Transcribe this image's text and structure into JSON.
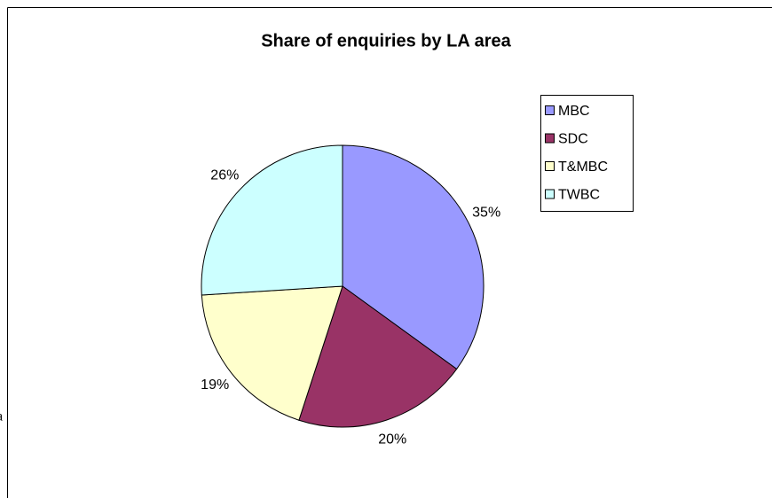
{
  "chart_data": {
    "type": "pie",
    "title": "Share of enquiries by LA area",
    "categories": [
      "MBC",
      "SDC",
      "T&MBC",
      "TWBC"
    ],
    "values": [
      35,
      20,
      19,
      26
    ],
    "value_labels": [
      "35%",
      "20%",
      "19%",
      "26%"
    ],
    "colors": [
      "#9999ff",
      "#993366",
      "#ffffcc",
      "#ccffff"
    ],
    "legend": "right"
  },
  "fragment_text": "a"
}
